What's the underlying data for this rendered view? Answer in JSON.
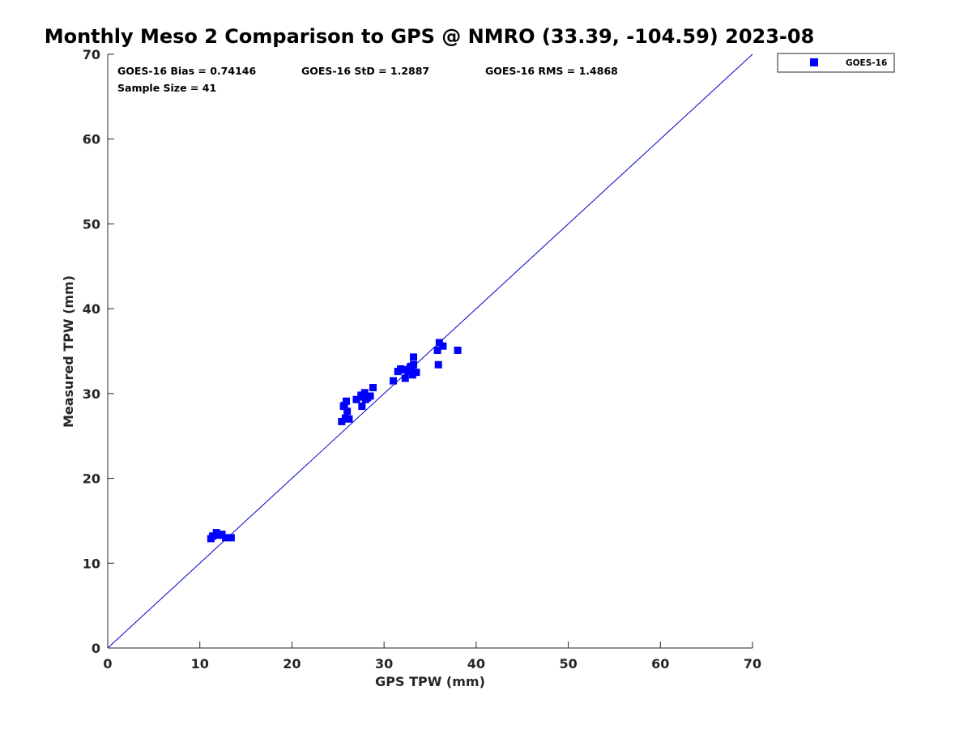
{
  "title": "Monthly Meso 2 Comparison to GPS @ NMRO (33.39, -104.59) 2023-08",
  "stats": {
    "bias": "GOES-16 Bias = 0.74146",
    "std": "GOES-16 StD = 1.2887",
    "rms": "GOES-16 RMS = 1.4868",
    "sample_size": "Sample Size = 41"
  },
  "legend": {
    "label": "GOES-16"
  },
  "colors": {
    "series": "#0000ff",
    "reference_line": "#0000cc",
    "axis": "#262626"
  },
  "chart_data": {
    "type": "scatter",
    "title": "Monthly Meso 2 Comparison to GPS @ NMRO (33.39, -104.59) 2023-08",
    "xlabel": "GPS TPW (mm)",
    "ylabel": "Measured TPW (mm)",
    "xlim": [
      0,
      70
    ],
    "ylim": [
      0,
      70
    ],
    "xticks": [
      0,
      10,
      20,
      30,
      40,
      50,
      60,
      70
    ],
    "yticks": [
      0,
      10,
      20,
      30,
      40,
      50,
      60,
      70
    ],
    "xtick_labels": [
      "0",
      "10",
      "20",
      "30",
      "40",
      "50",
      "60",
      "70"
    ],
    "ytick_labels": [
      "0",
      "10",
      "20",
      "30",
      "40",
      "50",
      "60",
      "70"
    ],
    "grid": false,
    "legend_position": "outside-top-right",
    "reference_line": {
      "type": "identity",
      "from": [
        0,
        0
      ],
      "to": [
        70,
        70
      ]
    },
    "series": [
      {
        "name": "GOES-16",
        "marker": "square",
        "points": [
          [
            11.2,
            12.9
          ],
          [
            11.4,
            13.2
          ],
          [
            11.8,
            13.6
          ],
          [
            12.4,
            13.4
          ],
          [
            12.8,
            13.0
          ],
          [
            13.4,
            13.0
          ],
          [
            25.4,
            26.7
          ],
          [
            25.6,
            28.5
          ],
          [
            25.8,
            27.1
          ],
          [
            25.9,
            29.1
          ],
          [
            26.0,
            27.9
          ],
          [
            26.2,
            27.0
          ],
          [
            27.0,
            29.3
          ],
          [
            27.6,
            28.5
          ],
          [
            27.8,
            29.6
          ],
          [
            27.9,
            30.1
          ],
          [
            28.2,
            29.5
          ],
          [
            28.5,
            29.7
          ],
          [
            28.8,
            30.7
          ],
          [
            31.0,
            31.5
          ],
          [
            31.5,
            32.6
          ],
          [
            32.0,
            32.8
          ],
          [
            32.3,
            31.8
          ],
          [
            32.6,
            32.6
          ],
          [
            32.8,
            33.0
          ],
          [
            33.1,
            32.2
          ],
          [
            33.2,
            33.4
          ],
          [
            33.2,
            34.3
          ],
          [
            33.5,
            32.5
          ],
          [
            33.0,
            33.1
          ],
          [
            35.8,
            35.1
          ],
          [
            35.9,
            33.4
          ],
          [
            36.0,
            36.0
          ],
          [
            36.4,
            35.6
          ],
          [
            38.0,
            35.1
          ],
          [
            31.8,
            32.9
          ],
          [
            27.5,
            29.8
          ],
          [
            25.7,
            28.6
          ],
          [
            28.0,
            29.3
          ],
          [
            32.9,
            33.2
          ],
          [
            12.0,
            13.3
          ]
        ]
      }
    ]
  }
}
